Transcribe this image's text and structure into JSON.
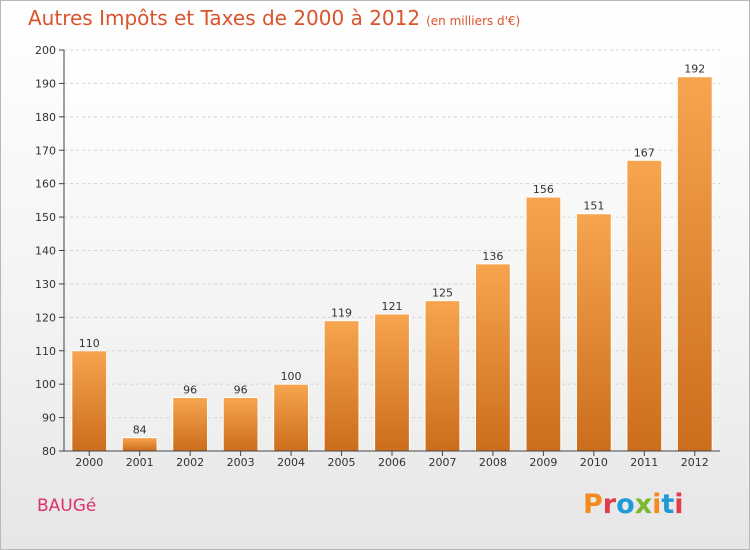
{
  "header": {
    "title": "Autres Impôts et Taxes de 2000 à 2012",
    "subtitle": "(en milliers d'€)"
  },
  "footer": {
    "city": "BAUGé",
    "logo_text": "Proxiti"
  },
  "colors": {
    "bar_top": "#f7a54f",
    "bar_bottom": "#cc6d1c",
    "title": "#d9532c",
    "city": "#e0306a",
    "logo": [
      "#f28c1e",
      "#e03c4c",
      "#1f9ad6",
      "#7cb82f",
      "#f28c1e",
      "#1f9ad6",
      "#e03c4c"
    ]
  },
  "chart_data": {
    "type": "bar",
    "title": "Autres Impôts et Taxes de 2000 à 2012",
    "subtitle": "(en milliers d'€)",
    "categories": [
      "2000",
      "2001",
      "2002",
      "2003",
      "2004",
      "2005",
      "2006",
      "2007",
      "2008",
      "2009",
      "2010",
      "2011",
      "2012"
    ],
    "values": [
      110,
      84,
      96,
      96,
      100,
      119,
      121,
      125,
      136,
      156,
      151,
      167,
      192
    ],
    "ylim": [
      80,
      200
    ],
    "yticks": [
      80,
      90,
      100,
      110,
      120,
      130,
      140,
      150,
      160,
      170,
      180,
      190,
      200
    ],
    "grid": true,
    "data_labels": true
  }
}
